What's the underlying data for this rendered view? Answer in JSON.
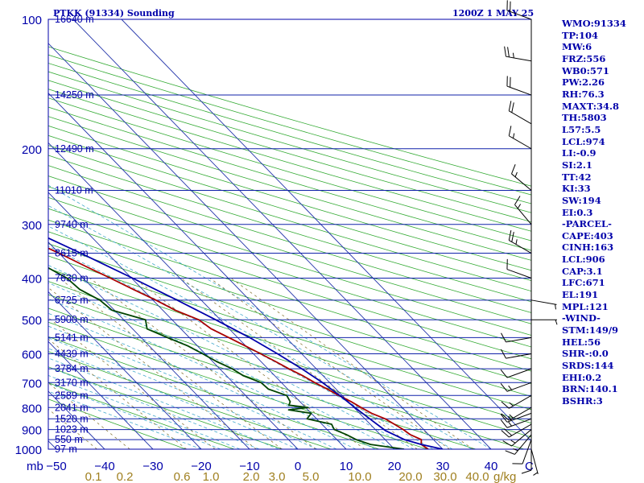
{
  "chart_data": {
    "type": "line",
    "title": "PTKK (91334) Sounding",
    "time_label": "1200Z  1 MAY 25",
    "pressure_ticks": [
      100,
      200,
      300,
      400,
      500,
      600,
      700,
      800,
      900,
      1000
    ],
    "pressure_axis_label": "mb",
    "temp_ticks": [
      -50,
      -40,
      -30,
      -20,
      -10,
      0,
      10,
      20,
      30,
      40
    ],
    "mixing_ratio_ticks": [
      "0.1",
      "0.2",
      "0.6",
      "1.0",
      "2.0",
      "3.0",
      "5.0",
      "10.0",
      "20.0",
      "30.0",
      "40.0"
    ],
    "mixing_ratio_unit": "g/kg",
    "axis_end_label": "C",
    "height_labels": [
      {
        "p": 100,
        "label": "16640 m"
      },
      {
        "p": 150,
        "label": "14250 m"
      },
      {
        "p": 200,
        "label": "12490 m"
      },
      {
        "p": 250,
        "label": "11010 m"
      },
      {
        "p": 300,
        "label": "9740 m"
      },
      {
        "p": 350,
        "label": "8615 m"
      },
      {
        "p": 400,
        "label": "7630 m"
      },
      {
        "p": 450,
        "label": "6725 m"
      },
      {
        "p": 500,
        "label": "5900 m"
      },
      {
        "p": 550,
        "label": "5141 m"
      },
      {
        "p": 600,
        "label": "4439 m"
      },
      {
        "p": 650,
        "label": "3784 m"
      },
      {
        "p": 700,
        "label": "3170 m"
      },
      {
        "p": 750,
        "label": "2589 m"
      },
      {
        "p": 800,
        "label": "2041 m"
      },
      {
        "p": 850,
        "label": "1520 m"
      },
      {
        "p": 900,
        "label": "1023 m"
      },
      {
        "p": 950,
        "label": "550 m"
      },
      {
        "p": 1000,
        "label": "97 m"
      }
    ],
    "series": [
      {
        "name": "temperature",
        "color": "#aa0000",
        "points": [
          [
            1000,
            27.0
          ],
          [
            975,
            26.5
          ],
          [
            950,
            27.5
          ],
          [
            925,
            26.2
          ],
          [
            900,
            25.8
          ],
          [
            875,
            25.0
          ],
          [
            850,
            24.2
          ],
          [
            825,
            22.5
          ],
          [
            800,
            21.5
          ],
          [
            775,
            20.6
          ],
          [
            750,
            19.3
          ],
          [
            725,
            18.2
          ],
          [
            700,
            16.9
          ],
          [
            675,
            15.8
          ],
          [
            650,
            14.3
          ],
          [
            625,
            13.0
          ],
          [
            600,
            11.5
          ],
          [
            575,
            9.9
          ],
          [
            550,
            8.2
          ],
          [
            525,
            6.3
          ],
          [
            500,
            5.5
          ],
          [
            475,
            2.6
          ],
          [
            450,
            0.6
          ],
          [
            425,
            -1.9
          ],
          [
            400,
            -4.4
          ],
          [
            375,
            -7.2
          ],
          [
            350,
            -10.0
          ],
          [
            325,
            -13.4
          ],
          [
            300,
            -16.8
          ],
          [
            275,
            -20.8
          ],
          [
            250,
            -25.0
          ],
          [
            225,
            -29.5
          ],
          [
            200,
            -34.5
          ],
          [
            175,
            -41.0
          ],
          [
            150,
            -49.5
          ],
          [
            125,
            -60.0
          ],
          [
            110,
            -66.5
          ],
          [
            100,
            -70.0
          ]
        ]
      },
      {
        "name": "dewpoint",
        "color": "#004400",
        "points": [
          [
            1000,
            22.0
          ],
          [
            975,
            16.0
          ],
          [
            950,
            14.0
          ],
          [
            925,
            13.0
          ],
          [
            900,
            11.5
          ],
          [
            875,
            12.0
          ],
          [
            850,
            8.0
          ],
          [
            825,
            10.0
          ],
          [
            810,
            6.0
          ],
          [
            800,
            10.5
          ],
          [
            790,
            7.0
          ],
          [
            775,
            8.0
          ],
          [
            750,
            8.5
          ],
          [
            725,
            6.0
          ],
          [
            700,
            5.8
          ],
          [
            675,
            3.5
          ],
          [
            650,
            2.6
          ],
          [
            625,
            0.8
          ],
          [
            600,
            -0.5
          ],
          [
            575,
            -2.0
          ],
          [
            550,
            -4.5
          ],
          [
            525,
            -7.0
          ],
          [
            500,
            -5.5
          ],
          [
            475,
            -10.5
          ],
          [
            450,
            -11.0
          ],
          [
            425,
            -13.0
          ],
          [
            400,
            -13.4
          ],
          [
            375,
            -15.5
          ],
          [
            350,
            -19.0
          ],
          [
            325,
            -22.5
          ],
          [
            300,
            -26.6
          ],
          [
            275,
            -30.5
          ],
          [
            250,
            -34.9
          ],
          [
            225,
            -40.5
          ],
          [
            200,
            -47.0
          ],
          [
            175,
            -55.5
          ],
          [
            150,
            -66.0
          ],
          [
            125,
            -73.0
          ],
          [
            110,
            -76.5
          ],
          [
            100,
            -79.0
          ]
        ]
      },
      {
        "name": "parcel",
        "color": "#0000aa",
        "points": [
          [
            1000,
            30.0
          ],
          [
            975,
            26.5
          ],
          [
            950,
            24.0
          ],
          [
            906,
            21.9
          ],
          [
            850,
            21.0
          ],
          [
            800,
            20.2
          ],
          [
            750,
            19.5
          ],
          [
            700,
            18.5
          ],
          [
            650,
            17.0
          ],
          [
            600,
            15.0
          ],
          [
            550,
            12.5
          ],
          [
            500,
            9.0
          ],
          [
            450,
            5.0
          ],
          [
            400,
            0.2
          ],
          [
            350,
            -5.5
          ],
          [
            300,
            -12.5
          ],
          [
            250,
            -22.0
          ],
          [
            200,
            -34.5
          ],
          [
            150,
            -52.0
          ],
          [
            120,
            -67.0
          ]
        ]
      }
    ],
    "wind_barbs": [
      {
        "p": 1000,
        "dir": 165,
        "spd": 5
      },
      {
        "p": 975,
        "dir": 180,
        "spd": 10
      },
      {
        "p": 950,
        "dir": 200,
        "spd": 10
      },
      {
        "p": 925,
        "dir": 220,
        "spd": 15
      },
      {
        "p": 900,
        "dir": 230,
        "spd": 15
      },
      {
        "p": 875,
        "dir": 240,
        "spd": 20
      },
      {
        "p": 850,
        "dir": 250,
        "spd": 15
      },
      {
        "p": 825,
        "dir": 250,
        "spd": 15
      },
      {
        "p": 800,
        "dir": 240,
        "spd": 15
      },
      {
        "p": 750,
        "dir": 240,
        "spd": 15
      },
      {
        "p": 700,
        "dir": 250,
        "spd": 15
      },
      {
        "p": 650,
        "dir": 250,
        "spd": 10
      },
      {
        "p": 600,
        "dir": 260,
        "spd": 10
      },
      {
        "p": 550,
        "dir": 260,
        "spd": 10
      },
      {
        "p": 500,
        "dir": 90,
        "spd": 5
      },
      {
        "p": 450,
        "dir": 100,
        "spd": 5
      },
      {
        "p": 400,
        "dir": 290,
        "spd": 10
      },
      {
        "p": 350,
        "dir": 300,
        "spd": 25
      },
      {
        "p": 300,
        "dir": 320,
        "spd": 15
      },
      {
        "p": 250,
        "dir": 310,
        "spd": 15
      },
      {
        "p": 200,
        "dir": 300,
        "spd": 15
      },
      {
        "p": 175,
        "dir": 300,
        "spd": 20
      },
      {
        "p": 150,
        "dir": 290,
        "spd": 20
      },
      {
        "p": 125,
        "dir": 280,
        "spd": 25
      },
      {
        "p": 100,
        "dir": 290,
        "spd": 20
      }
    ],
    "grid": true
  },
  "indices": [
    "WMO:91334",
    "TP:104",
    "MW:6",
    "FRZ:556",
    "WB0:571",
    "PW:2.26",
    "RH:76.3",
    "MAXT:34.8",
    "TH:5803",
    "L57:5.5",
    "LCL:974",
    "LI:-0.9",
    "SI:2.1",
    "TT:42",
    "KI:33",
    "SW:194",
    "EI:0.3",
    "-PARCEL-",
    "CAPE:403",
    "CINH:163",
    "LCL:906",
    "CAP:3.1",
    "LFC:671",
    "EL:191",
    "MPL:121",
    "-WIND-",
    "STM:149/9",
    "HEL:56",
    "SHR-:0.0",
    "SRDS:144",
    "EHI:0.2",
    "BRN:140.1",
    "BSHR:3"
  ]
}
